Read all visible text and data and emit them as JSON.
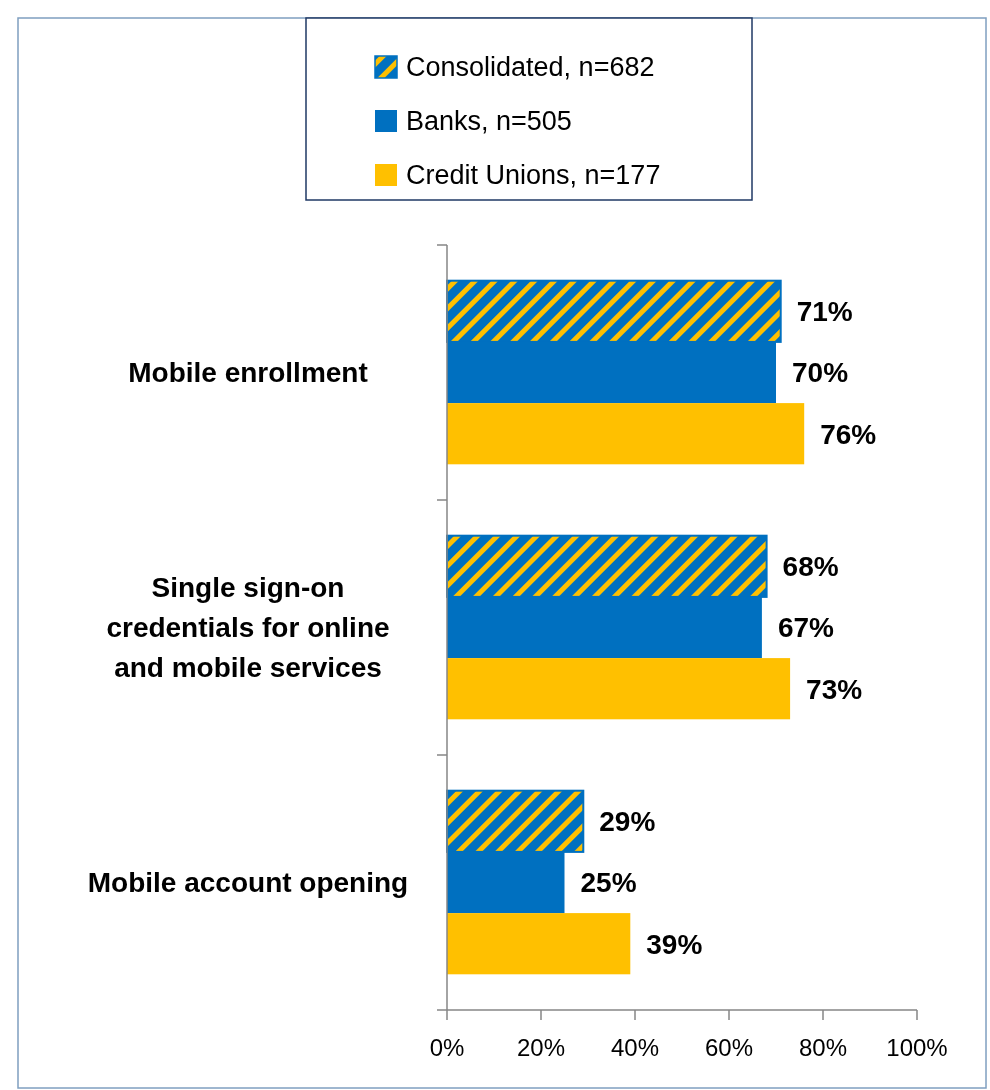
{
  "chart_data": {
    "type": "bar",
    "orientation": "horizontal",
    "categories": [
      "Mobile enrollment",
      "Single sign-on credentials for online and mobile services",
      "Mobile account opening"
    ],
    "series": [
      {
        "name": "Consolidated, n=682",
        "color": "#0070c0",
        "values": [
          71,
          68,
          29
        ]
      },
      {
        "name": "Banks, n=505",
        "color": "#0070c0",
        "values": [
          70,
          67,
          25
        ]
      },
      {
        "name": "Credit Unions, n=177",
        "color": "#ffc000",
        "values": [
          76,
          73,
          39
        ]
      }
    ],
    "xlim": [
      0,
      100
    ],
    "xticks": [
      {
        "value": 0,
        "label": "0%"
      },
      {
        "value": 20,
        "label": "20%"
      },
      {
        "value": 40,
        "label": "40%"
      },
      {
        "value": 60,
        "label": "60%"
      },
      {
        "value": 80,
        "label": "80%"
      },
      {
        "value": 100,
        "label": "100%"
      }
    ],
    "value_labels": [
      [
        "71%",
        "68%",
        "29%"
      ],
      [
        "70%",
        "67%",
        "25%"
      ],
      [
        "76%",
        "73%",
        "39%"
      ]
    ],
    "legend": "top",
    "grid": false
  }
}
